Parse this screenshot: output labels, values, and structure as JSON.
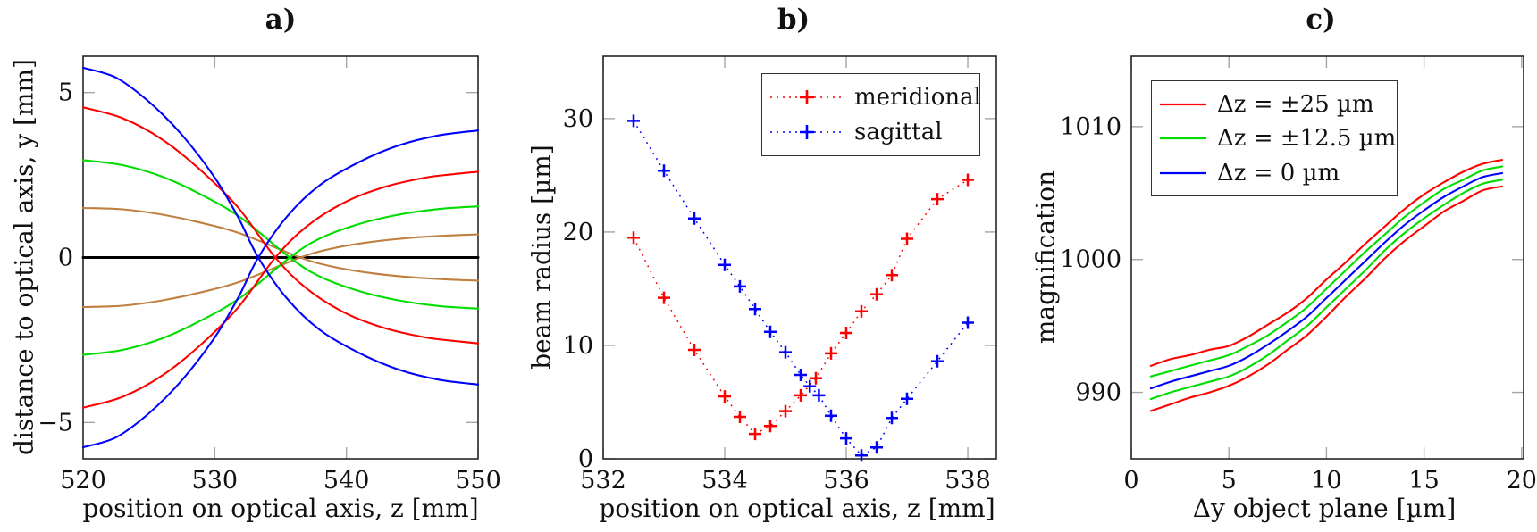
{
  "figure": {
    "background": "#ffffff",
    "frame_color": "#262626",
    "tick_color": "#a6a6a6"
  },
  "chart_data": [
    {
      "id": "a",
      "type": "line",
      "title": "a)",
      "xlabel": "position on optical axis, z [mm]",
      "ylabel": "distance to optical axis, y [mm]",
      "xlim": [
        520,
        550
      ],
      "ylim": [
        -6.1,
        6.1
      ],
      "xticks": [
        520,
        530,
        540,
        550
      ],
      "xtick_labels": [
        "520",
        "530",
        "540",
        "550"
      ],
      "yticks": [
        -5,
        0,
        5
      ],
      "ytick_labels": [
        "−5",
        "0",
        "5"
      ],
      "grid": false,
      "series": [
        {
          "name": "optical-axis",
          "color": "#000000",
          "width": 3,
          "points": [
            [
              520,
              0
            ],
            [
              535,
              0
            ],
            [
              550,
              0
            ]
          ]
        },
        {
          "name": "brown-ray-upper",
          "color": "#bf8040",
          "width": 2.1,
          "points": [
            [
              520,
              1.5
            ],
            [
              523,
              1.46
            ],
            [
              526,
              1.3
            ],
            [
              529,
              1.05
            ],
            [
              532,
              0.72
            ],
            [
              536.5,
              0
            ],
            [
              539,
              -0.28
            ],
            [
              542,
              -0.48
            ],
            [
              545,
              -0.6
            ],
            [
              548,
              -0.67
            ],
            [
              550,
              -0.7
            ]
          ]
        },
        {
          "name": "brown-ray-lower",
          "color": "#bf8040",
          "width": 2.1,
          "points": [
            [
              520,
              -1.5
            ],
            [
              523,
              -1.46
            ],
            [
              526,
              -1.3
            ],
            [
              529,
              -1.05
            ],
            [
              532,
              -0.72
            ],
            [
              536.5,
              0
            ],
            [
              539,
              0.28
            ],
            [
              542,
              0.48
            ],
            [
              545,
              0.6
            ],
            [
              548,
              0.67
            ],
            [
              550,
              0.7
            ]
          ]
        },
        {
          "name": "green-ray-upper",
          "color": "#00dd00",
          "width": 2.1,
          "points": [
            [
              520,
              2.95
            ],
            [
              523,
              2.8
            ],
            [
              526,
              2.45
            ],
            [
              529,
              1.9
            ],
            [
              532,
              1.2
            ],
            [
              535.7,
              0
            ],
            [
              538,
              -0.58
            ],
            [
              541,
              -1.02
            ],
            [
              544,
              -1.3
            ],
            [
              547,
              -1.47
            ],
            [
              550,
              -1.55
            ]
          ]
        },
        {
          "name": "green-ray-lower",
          "color": "#00dd00",
          "width": 2.1,
          "points": [
            [
              520,
              -2.95
            ],
            [
              523,
              -2.8
            ],
            [
              526,
              -2.45
            ],
            [
              529,
              -1.9
            ],
            [
              532,
              -1.2
            ],
            [
              535.7,
              0
            ],
            [
              538,
              0.58
            ],
            [
              541,
              1.02
            ],
            [
              544,
              1.3
            ],
            [
              547,
              1.47
            ],
            [
              550,
              1.55
            ]
          ]
        },
        {
          "name": "red-ray-upper",
          "color": "#ff0000",
          "width": 2.1,
          "points": [
            [
              520,
              4.55
            ],
            [
              523,
              4.22
            ],
            [
              526,
              3.58
            ],
            [
              529,
              2.62
            ],
            [
              531.8,
              1.5
            ],
            [
              534.6,
              0
            ],
            [
              537,
              -0.95
            ],
            [
              540,
              -1.7
            ],
            [
              543,
              -2.15
            ],
            [
              546,
              -2.42
            ],
            [
              548,
              -2.52
            ],
            [
              550,
              -2.6
            ]
          ]
        },
        {
          "name": "red-ray-lower",
          "color": "#ff0000",
          "width": 2.1,
          "points": [
            [
              520,
              -4.55
            ],
            [
              523,
              -4.22
            ],
            [
              526,
              -3.58
            ],
            [
              529,
              -2.62
            ],
            [
              531.8,
              -1.5
            ],
            [
              534.6,
              0
            ],
            [
              537,
              0.95
            ],
            [
              540,
              1.7
            ],
            [
              543,
              2.15
            ],
            [
              546,
              2.42
            ],
            [
              548,
              2.52
            ],
            [
              550,
              2.6
            ]
          ]
        },
        {
          "name": "blue-ray-upper",
          "color": "#0000ff",
          "width": 2.1,
          "points": [
            [
              520,
              5.75
            ],
            [
              522.5,
              5.45
            ],
            [
              525,
              4.72
            ],
            [
              527.5,
              3.72
            ],
            [
              530,
              2.42
            ],
            [
              531.8,
              1.2
            ],
            [
              533.3,
              0
            ],
            [
              535.5,
              -1.25
            ],
            [
              538,
              -2.2
            ],
            [
              541,
              -2.9
            ],
            [
              544,
              -3.4
            ],
            [
              547,
              -3.7
            ],
            [
              550,
              -3.85
            ]
          ]
        },
        {
          "name": "blue-ray-lower",
          "color": "#0000ff",
          "width": 2.1,
          "points": [
            [
              520,
              -5.75
            ],
            [
              522.5,
              -5.45
            ],
            [
              525,
              -4.72
            ],
            [
              527.5,
              -3.72
            ],
            [
              530,
              -2.42
            ],
            [
              531.8,
              -1.2
            ],
            [
              533.3,
              0
            ],
            [
              535.5,
              1.25
            ],
            [
              538,
              2.2
            ],
            [
              541,
              2.9
            ],
            [
              544,
              3.4
            ],
            [
              547,
              3.7
            ],
            [
              550,
              3.85
            ]
          ]
        }
      ]
    },
    {
      "id": "b",
      "type": "scatter",
      "title": "b)",
      "xlabel": "position on optical axis, z [mm]",
      "ylabel": "beam radius [µm]",
      "xlim": [
        532,
        538.47
      ],
      "ylim": [
        0,
        35.5
      ],
      "xticks": [
        532,
        534,
        536,
        538
      ],
      "xtick_labels": [
        "532",
        "534",
        "536",
        "538"
      ],
      "yticks": [
        0,
        10,
        20,
        30
      ],
      "ytick_labels": [
        "0",
        "10",
        "20",
        "30"
      ],
      "grid": false,
      "legend_position": "top-right",
      "legend": [
        {
          "label": "meridional",
          "color": "#ff0000"
        },
        {
          "label": "sagittal",
          "color": "#0000ff"
        }
      ],
      "series": [
        {
          "name": "meridional",
          "color": "#ff0000",
          "marker": "plus",
          "linestyle": "dotted",
          "points": [
            [
              532.5,
              19.5
            ],
            [
              533,
              14.2
            ],
            [
              533.5,
              9.6
            ],
            [
              534,
              5.5
            ],
            [
              534.25,
              3.7
            ],
            [
              534.5,
              2.2
            ],
            [
              534.75,
              2.9
            ],
            [
              535,
              4.2
            ],
            [
              535.25,
              5.6
            ],
            [
              535.5,
              7.1
            ],
            [
              535.75,
              9.3
            ],
            [
              536,
              11.1
            ],
            [
              536.25,
              13.0
            ],
            [
              536.5,
              14.5
            ],
            [
              536.75,
              16.2
            ],
            [
              537,
              19.4
            ],
            [
              537.5,
              22.9
            ],
            [
              538,
              24.6
            ]
          ]
        },
        {
          "name": "sagittal",
          "color": "#0000ff",
          "marker": "plus",
          "linestyle": "dotted",
          "points": [
            [
              532.5,
              29.8
            ],
            [
              533,
              25.4
            ],
            [
              533.5,
              21.2
            ],
            [
              534,
              17.1
            ],
            [
              534.25,
              15.2
            ],
            [
              534.5,
              13.2
            ],
            [
              534.75,
              11.2
            ],
            [
              535,
              9.4
            ],
            [
              535.25,
              7.4
            ],
            [
              535.4,
              6.4
            ],
            [
              535.55,
              5.6
            ],
            [
              535.75,
              3.8
            ],
            [
              536,
              1.8
            ],
            [
              536.25,
              0.3
            ],
            [
              536.5,
              1.0
            ],
            [
              536.75,
              3.6
            ],
            [
              537,
              5.3
            ],
            [
              537.5,
              8.6
            ],
            [
              538,
              12.0
            ]
          ]
        }
      ]
    },
    {
      "id": "c",
      "type": "line",
      "title": "c)",
      "xlabel": "Δy object plane [µm]",
      "ylabel": "magnification",
      "xlim": [
        0,
        20.1
      ],
      "ylim": [
        985,
        1015.3
      ],
      "xticks": [
        0,
        5,
        10,
        15,
        20
      ],
      "xtick_labels": [
        "0",
        "5",
        "10",
        "15",
        "20"
      ],
      "yticks": [
        990,
        1000,
        1010
      ],
      "ytick_labels": [
        "990",
        "1000",
        "1010"
      ],
      "grid": false,
      "legend_position": "top-left",
      "legend": [
        {
          "label": "Δz = ±25 µm",
          "color": "#ff0000"
        },
        {
          "label": "Δz = ±12.5 µm",
          "color": "#00dd00"
        },
        {
          "label": "Δz = 0 µm",
          "color": "#0000ff"
        }
      ],
      "x": [
        1,
        2,
        3,
        4,
        5,
        6,
        7,
        8,
        9,
        10,
        11,
        12,
        13,
        14,
        15,
        16,
        17,
        18,
        19
      ],
      "series": [
        {
          "name": "delta-z-plus-25",
          "color": "#ff0000",
          "width": 2.1,
          "values": [
            992.0,
            992.5,
            992.8,
            993.2,
            993.5,
            994.2,
            995.1,
            996.0,
            997.1,
            998.5,
            999.8,
            1001.2,
            1002.5,
            1003.8,
            1004.9,
            1005.8,
            1006.6,
            1007.2,
            1007.5
          ]
        },
        {
          "name": "delta-z-plus-12-5",
          "color": "#00dd00",
          "width": 2.1,
          "values": [
            991.2,
            991.6,
            992.0,
            992.4,
            992.8,
            993.5,
            994.3,
            995.3,
            996.4,
            997.8,
            999.2,
            1000.6,
            1001.9,
            1003.2,
            1004.3,
            1005.3,
            1006.0,
            1006.7,
            1007.0
          ]
        },
        {
          "name": "delta-z-0",
          "color": "#0000ff",
          "width": 2.1,
          "values": [
            990.3,
            990.8,
            991.2,
            991.6,
            992.0,
            992.7,
            993.6,
            994.6,
            995.7,
            997.1,
            998.5,
            999.9,
            1001.3,
            1002.6,
            1003.7,
            1004.7,
            1005.5,
            1006.2,
            1006.5
          ]
        },
        {
          "name": "delta-z-minus-12-5",
          "color": "#00dd00",
          "width": 2.1,
          "values": [
            989.5,
            990.0,
            990.4,
            990.8,
            991.2,
            991.9,
            992.8,
            993.9,
            995.0,
            996.4,
            997.8,
            999.2,
            1000.7,
            1002.0,
            1003.1,
            1004.1,
            1005.0,
            1005.7,
            1006.0
          ]
        },
        {
          "name": "delta-z-minus-25",
          "color": "#ff0000",
          "width": 2.1,
          "values": [
            988.6,
            989.1,
            989.6,
            990.0,
            990.5,
            991.2,
            992.1,
            993.2,
            994.3,
            995.7,
            997.2,
            998.6,
            1000.1,
            1001.4,
            1002.5,
            1003.6,
            1004.4,
            1005.2,
            1005.5
          ]
        }
      ]
    }
  ]
}
